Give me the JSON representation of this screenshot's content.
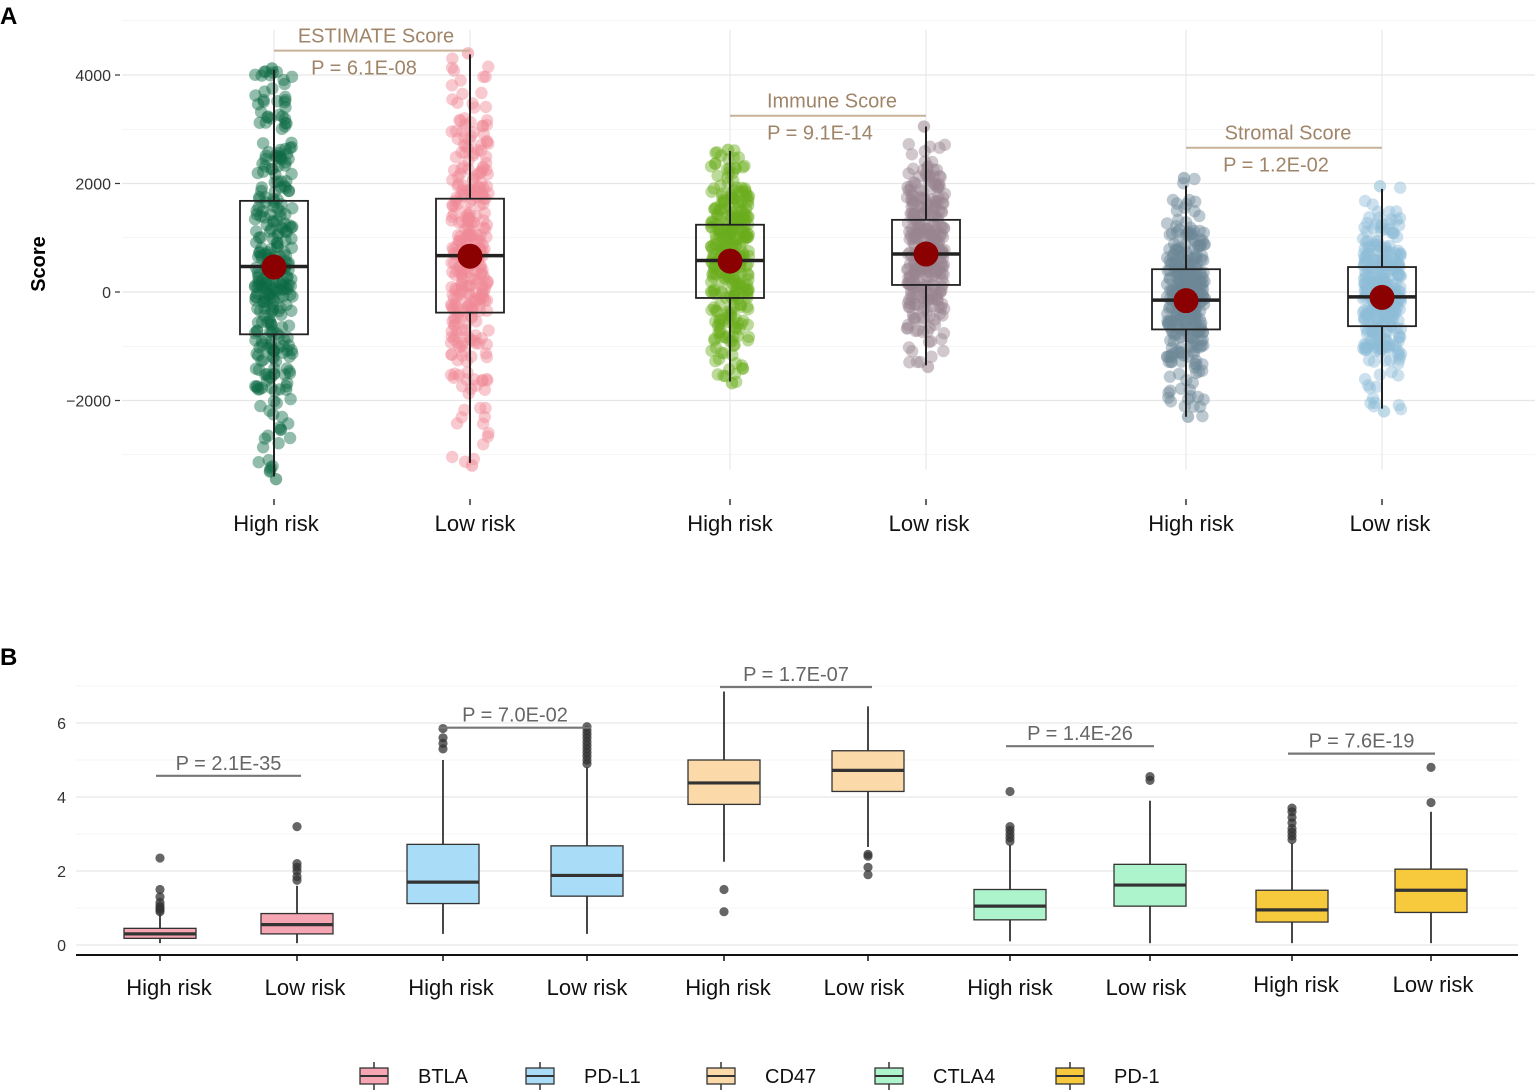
{
  "chart_data": [
    {
      "type": "box",
      "panel_label": "A",
      "ylabel": "Score",
      "ylim": [
        -3500,
        4400
      ],
      "yticks": [
        4000,
        2000,
        0,
        -2000
      ],
      "ytick_labels": [
        "4000",
        "2000",
        "0",
        "−2000"
      ],
      "groups": [
        {
          "category": "High risk",
          "score": "ESTIMATE Score",
          "color": "#0e6b45",
          "q1": -780,
          "median": 470,
          "q3": 1680,
          "whisker_low": -3400,
          "whisker_high": 4100,
          "mean": 460,
          "range": [
            -3450,
            4120
          ]
        },
        {
          "category": "Low risk",
          "score": "ESTIMATE Score",
          "color": "#f08a96",
          "q1": -380,
          "median": 670,
          "q3": 1720,
          "whisker_low": -3150,
          "whisker_high": 4380,
          "mean": 660,
          "range": [
            -3200,
            4400
          ]
        },
        {
          "category": "High risk",
          "score": "Immune Score",
          "color": "#6aad1c",
          "q1": -110,
          "median": 580,
          "q3": 1240,
          "whisker_low": -1650,
          "whisker_high": 2600,
          "mean": 570,
          "range": [
            -1680,
            2620
          ]
        },
        {
          "category": "Low risk",
          "score": "Immune Score",
          "color": "#9a8490",
          "q1": 130,
          "median": 700,
          "q3": 1330,
          "whisker_low": -1350,
          "whisker_high": 3050,
          "mean": 700,
          "range": [
            -1380,
            3050
          ]
        },
        {
          "category": "High risk",
          "score": "Stromal Score",
          "color": "#6c8796",
          "q1": -690,
          "median": -150,
          "q3": 420,
          "whisker_low": -2300,
          "whisker_high": 1960,
          "mean": -160,
          "range": [
            -2300,
            2100
          ]
        },
        {
          "category": "Low risk",
          "score": "Stromal Score",
          "color": "#8dbdd6",
          "q1": -630,
          "median": -90,
          "q3": 460,
          "whisker_low": -2150,
          "whisker_high": 1900,
          "mean": -100,
          "range": [
            -2200,
            1950
          ]
        }
      ],
      "comparisons": [
        {
          "title": "ESTIMATE Score",
          "p": "P = 6.1E-08",
          "between": [
            0,
            1
          ],
          "y": 4450
        },
        {
          "title": "Immune Score",
          "p": "P = 9.1E-14",
          "between": [
            2,
            3
          ],
          "y": 3250
        },
        {
          "title": "Stromal Score",
          "p": "P = 1.2E-02",
          "between": [
            4,
            5
          ],
          "y": 2660
        }
      ],
      "mean_marker_color": "#8b0000"
    },
    {
      "type": "box",
      "panel_label": "B",
      "ylim": [
        -0.3,
        7
      ],
      "yticks": [
        0,
        2,
        4,
        6
      ],
      "ytick_labels": [
        "0",
        "2",
        "4",
        "6"
      ],
      "legend": [
        {
          "label": "BTLA",
          "color": "#f6a5b2"
        },
        {
          "label": "PD-L1",
          "color": "#a9dcf6"
        },
        {
          "label": "CD47",
          "color": "#fbd9a8"
        },
        {
          "label": "CTLA4",
          "color": "#adf3cc"
        },
        {
          "label": "PD-1",
          "color": "#f7c93c"
        }
      ],
      "boxes": [
        {
          "category": "High risk",
          "gene": "BTLA",
          "q1": 0.18,
          "median": 0.3,
          "q3": 0.45,
          "whisker_low": 0.05,
          "whisker_high": 0.85,
          "outliers": [
            0.9,
            0.95,
            1.0,
            1.05,
            1.15,
            1.3,
            1.5,
            2.35
          ]
        },
        {
          "category": "Low risk",
          "gene": "BTLA",
          "q1": 0.3,
          "median": 0.55,
          "q3": 0.85,
          "whisker_low": 0.05,
          "whisker_high": 1.6,
          "outliers": [
            1.75,
            1.85,
            2.0,
            2.1,
            2.2,
            3.2
          ]
        },
        {
          "category": "High risk",
          "gene": "PD-L1",
          "q1": 1.12,
          "median": 1.7,
          "q3": 2.72,
          "whisker_low": 0.3,
          "whisker_high": 5.0,
          "outliers": [
            5.3,
            5.45,
            5.6,
            5.85
          ]
        },
        {
          "category": "Low risk",
          "gene": "PD-L1",
          "q1": 1.32,
          "median": 1.88,
          "q3": 2.68,
          "whisker_low": 0.3,
          "whisker_high": 4.8,
          "outliers": [
            4.9,
            5.0,
            5.1,
            5.2,
            5.3,
            5.4,
            5.5,
            5.6,
            5.7,
            5.8,
            5.9
          ]
        },
        {
          "category": "High risk",
          "gene": "CD47",
          "q1": 3.8,
          "median": 4.38,
          "q3": 5.0,
          "whisker_low": 2.25,
          "whisker_high": 6.85,
          "outliers": [
            0.9,
            1.5
          ]
        },
        {
          "category": "Low risk",
          "gene": "CD47",
          "q1": 4.15,
          "median": 4.72,
          "q3": 5.25,
          "whisker_low": 2.65,
          "whisker_high": 6.45,
          "outliers": [
            1.9,
            2.1,
            2.4,
            2.45
          ]
        },
        {
          "category": "High risk",
          "gene": "CTLA4",
          "q1": 0.68,
          "median": 1.05,
          "q3": 1.5,
          "whisker_low": 0.1,
          "whisker_high": 2.7,
          "outliers": [
            2.8,
            2.9,
            3.0,
            3.1,
            3.2,
            4.15
          ]
        },
        {
          "category": "Low risk",
          "gene": "CTLA4",
          "q1": 1.05,
          "median": 1.62,
          "q3": 2.18,
          "whisker_low": 0.05,
          "whisker_high": 3.9,
          "outliers": [
            4.45,
            4.55
          ]
        },
        {
          "category": "High risk",
          "gene": "PD-1",
          "q1": 0.62,
          "median": 0.95,
          "q3": 1.48,
          "whisker_low": 0.05,
          "whisker_high": 2.75,
          "outliers": [
            2.85,
            2.95,
            3.05,
            3.15,
            3.3,
            3.45,
            3.6,
            3.7
          ]
        },
        {
          "category": "Low risk",
          "gene": "PD-1",
          "q1": 0.88,
          "median": 1.48,
          "q3": 2.05,
          "whisker_low": 0.05,
          "whisker_high": 3.6,
          "outliers": [
            3.85,
            4.8
          ]
        }
      ],
      "comparisons": [
        {
          "p": "P = 2.1E-35",
          "between": [
            0,
            1
          ],
          "y": 4.6
        },
        {
          "p": "P = 7.0E-02",
          "between": [
            2,
            3
          ],
          "y": 5.9
        },
        {
          "p": "P = 1.7E-07",
          "between": [
            4,
            5
          ],
          "y": 7.0
        },
        {
          "p": "P = 1.4E-26",
          "between": [
            6,
            7
          ],
          "y": 5.4
        },
        {
          "p": "P = 7.6E-19",
          "between": [
            8,
            9
          ],
          "y": 5.2
        }
      ]
    }
  ]
}
